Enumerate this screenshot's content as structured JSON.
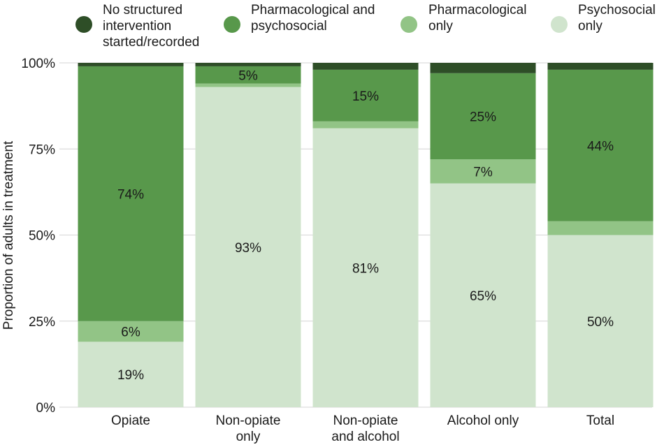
{
  "chart_data": {
    "type": "bar",
    "stacked": true,
    "percent": true,
    "categories": [
      [
        "Opiate"
      ],
      [
        "Non-opiate",
        "only"
      ],
      [
        "Non-opiate",
        "and alcohol"
      ],
      [
        "Alcohol only"
      ],
      [
        "Total"
      ]
    ],
    "series": [
      {
        "name": [
          "Psychosocial",
          "only"
        ],
        "color": "#d0e4cd",
        "values": [
          19,
          93,
          81,
          65,
          50
        ],
        "labels": [
          "19%",
          "93%",
          "81%",
          "65%",
          "50%"
        ]
      },
      {
        "name": [
          "Pharmacological",
          "only"
        ],
        "color": "#92c486",
        "values": [
          6,
          1,
          2,
          7,
          4
        ],
        "labels": [
          "6%",
          "",
          "",
          "7%",
          ""
        ]
      },
      {
        "name": [
          "Pharmacological and",
          "psychosocial"
        ],
        "color": "#58984b",
        "values": [
          74,
          5,
          15,
          25,
          44
        ],
        "labels": [
          "74%",
          "5%",
          "15%",
          "25%",
          "44%"
        ]
      },
      {
        "name": [
          "No structured",
          "intervention",
          "started/recorded"
        ],
        "color": "#2e4e27",
        "values": [
          1,
          1,
          2,
          3,
          2
        ],
        "labels": [
          "",
          "",
          "",
          "",
          ""
        ]
      }
    ],
    "legend_order": [
      3,
      2,
      1,
      0
    ],
    "legend_position": "top",
    "ylabel": "Proportion of adults in treatment",
    "xlabel": "",
    "ylim": [
      0,
      100
    ],
    "yticks": [
      0,
      25,
      50,
      75,
      100
    ],
    "ytick_labels": [
      "0%",
      "25%",
      "50%",
      "75%",
      "100%"
    ],
    "grid": "horizontal"
  }
}
